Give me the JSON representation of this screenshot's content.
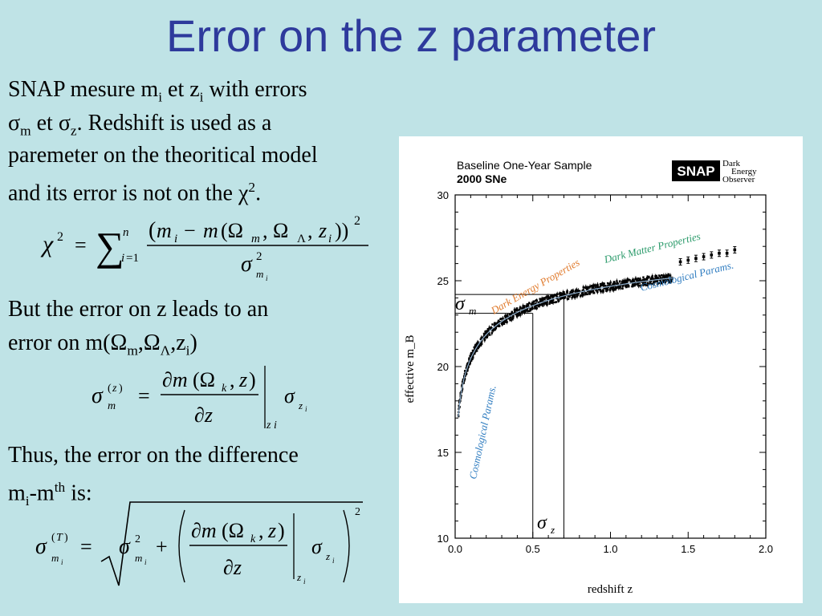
{
  "slide": {
    "title": "Error on the z parameter",
    "para1": {
      "l1a": "SNAP mesure m",
      "l1sub": "i",
      "l1b": " et z",
      "l1sub2": "i",
      "l1c": " with errors",
      "l2a": "σ",
      "l2sub": "m",
      "l2b": " et σ",
      "l2sub2": "z",
      "l2c": ". Redshift is used as a",
      "l3": "paremeter on the theoritical model",
      "l4a": "and its error is not on the χ",
      "l4sup": "2",
      "l4b": "."
    },
    "para2": {
      "l1": "But the error on z leads to an",
      "l2a": "error on m(Ω",
      "l2sub": "m",
      "l2b": ",Ω",
      "l2sub2": "Λ",
      "l2c": ",z",
      "l2sub3": "i",
      "l2d": ")"
    },
    "para3": {
      "l1": "Thus, the error on the difference",
      "l2a": "m",
      "l2sub": "i",
      "l2b": "-m",
      "l2sup": "th",
      "l2c": " is:"
    }
  },
  "chart_data": {
    "type": "scatter",
    "header_title": "Baseline One-Year Sample",
    "header_subtitle": "2000 SNe",
    "logo_text": "SNAP",
    "logo_tagline": [
      "Dark",
      "Energy",
      "Observer"
    ],
    "xlabel": "redshift z",
    "ylabel": "effective m_B",
    "xlim": [
      0.0,
      2.0
    ],
    "ylim": [
      10,
      30
    ],
    "x_ticks": [
      "0.0",
      "0.5",
      "1.0",
      "1.5",
      "2.0"
    ],
    "y_ticks": [
      "10",
      "15",
      "20",
      "25",
      "30"
    ],
    "annotations": {
      "dark_energy": "Dark Energy Properties",
      "dark_matter": "Dark Matter Properties",
      "cosmo_top": "Cosmological Params.",
      "cosmo_left": "Cosmological Params.",
      "sigma_m": "σ",
      "sigma_m_sub": "m",
      "sigma_z": "σ",
      "sigma_z_sub": "z"
    },
    "guide_lines": {
      "z_lower": 0.5,
      "z_upper": 0.7,
      "m_lower": 23.1,
      "m_upper": 24.2
    },
    "binned_points": [
      {
        "z": 1.45,
        "m": 26.1
      },
      {
        "z": 1.5,
        "m": 26.2
      },
      {
        "z": 1.55,
        "m": 26.3
      },
      {
        "z": 1.6,
        "m": 26.4
      },
      {
        "z": 1.65,
        "m": 26.5
      },
      {
        "z": 1.7,
        "m": 26.6
      },
      {
        "z": 1.75,
        "m": 26.6
      },
      {
        "z": 1.8,
        "m": 26.8
      }
    ]
  },
  "colors": {
    "title": "#2e3a9c",
    "dark_energy": "#e07a2c",
    "dark_matter": "#2a9a6a",
    "cosmo": "#2e7cc0",
    "background": "#bfe3e6"
  }
}
